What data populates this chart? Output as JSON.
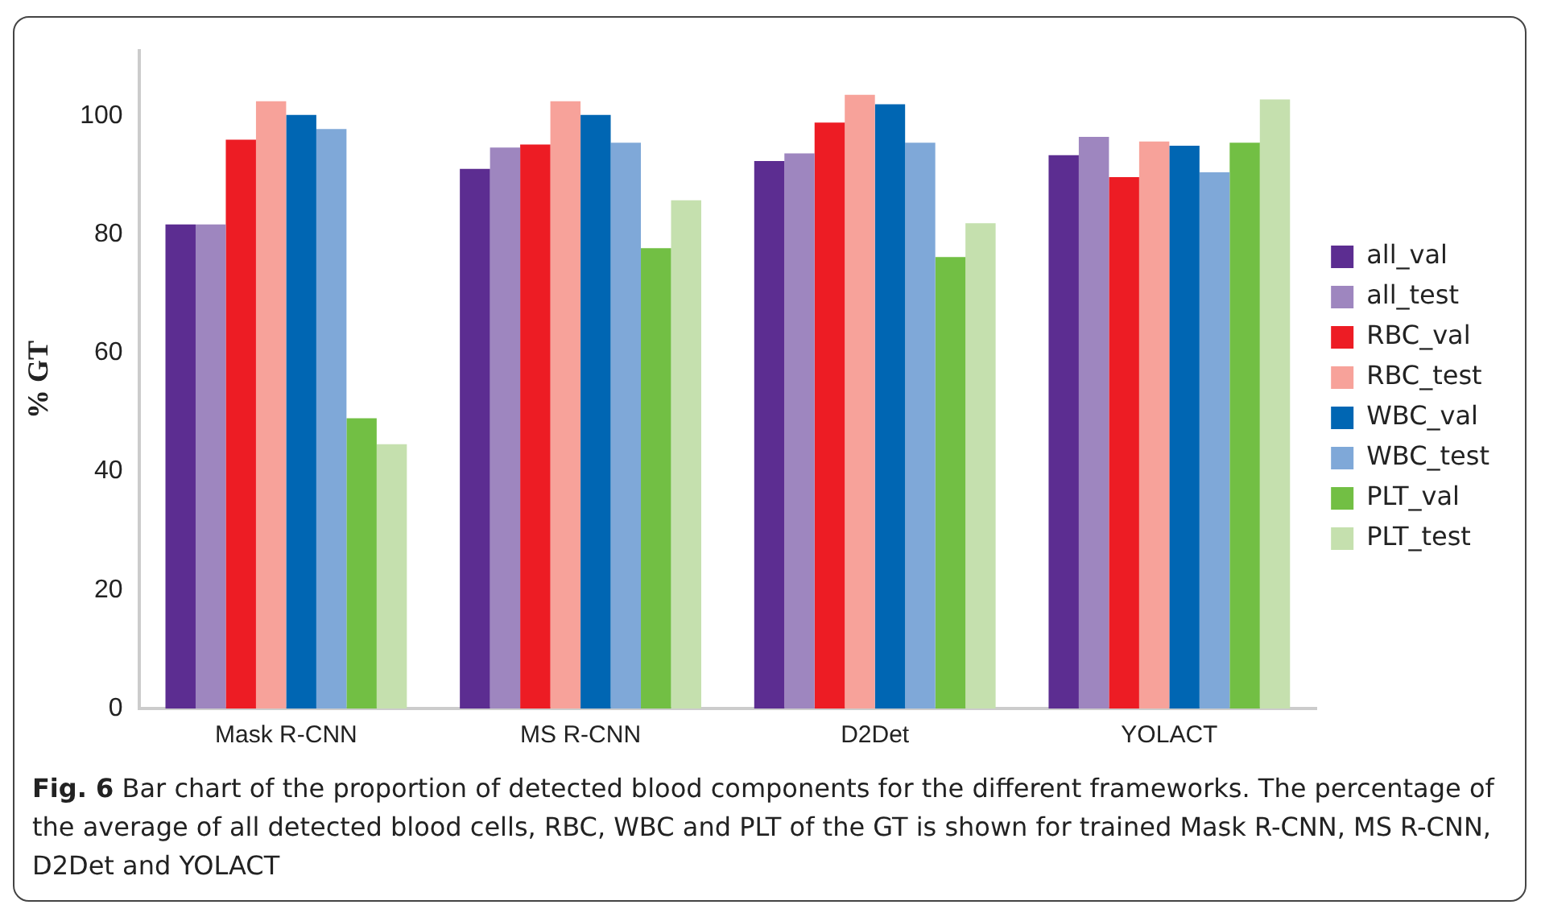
{
  "chart_data": {
    "type": "bar",
    "ylabel": "% GT",
    "categories": [
      "Mask R-CNN",
      "MS R-CNN",
      "D2Det",
      "YOLACT"
    ],
    "series": [
      {
        "name": "all_val",
        "color": "#5c2d91",
        "values": [
          81.7,
          91.1,
          92.4,
          93.4
        ]
      },
      {
        "name": "all_test",
        "color": "#9e86bf",
        "values": [
          81.7,
          94.7,
          93.7,
          96.5
        ]
      },
      {
        "name": "RBC_val",
        "color": "#ed1c24",
        "values": [
          96.0,
          95.2,
          98.9,
          89.7
        ]
      },
      {
        "name": "RBC_test",
        "color": "#f7a29a",
        "values": [
          102.5,
          102.5,
          103.6,
          95.7
        ]
      },
      {
        "name": "WBC_val",
        "color": "#0066b3",
        "values": [
          100.2,
          100.2,
          102.0,
          95.0
        ]
      },
      {
        "name": "WBC_test",
        "color": "#7fa8d8",
        "values": [
          97.8,
          95.5,
          95.5,
          90.5
        ]
      },
      {
        "name": "PLT_val",
        "color": "#72bf44",
        "values": [
          49.0,
          77.7,
          76.2,
          95.5
        ]
      },
      {
        "name": "PLT_test",
        "color": "#c5e0ae",
        "values": [
          44.6,
          85.8,
          81.9,
          102.8
        ]
      }
    ],
    "ylim": [
      0,
      111
    ],
    "yticks": [
      0,
      20,
      40,
      60,
      80,
      100
    ],
    "grid": false,
    "legend": "right",
    "annotations": [
      "Fig. 6  Bar chart of the proportion of detected blood components for the different frameworks. The percentage of the average of all detected blood cells, RBC, WBC and PLT of the GT is shown for trained Mask R-CNN, MS R-CNN, D2Det and YOLACT"
    ]
  }
}
